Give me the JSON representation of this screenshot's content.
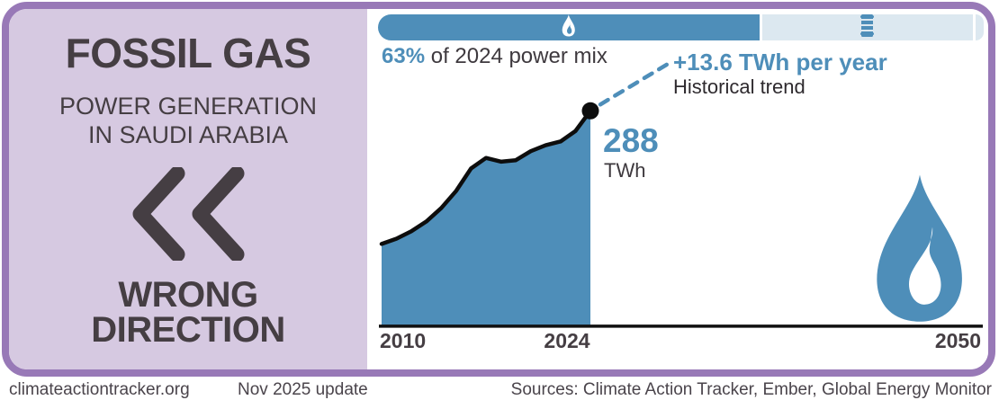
{
  "panel": {
    "title": "FOSSIL GAS",
    "subtitle_line1": "POWER GENERATION",
    "subtitle_line2": "IN SAUDI ARABIA",
    "rating_line1": "WRONG",
    "rating_line2": "DIRECTION"
  },
  "power_mix_bar": {
    "share_label": "63%",
    "share_label_suffix": " of 2024 power mix",
    "gas_share_pct": 63,
    "other_fossil_share_pct": 35.5,
    "remainder_share_pct": 1.5,
    "gas_icon": "flame-icon",
    "oil_icon": "oil-barrel-icon"
  },
  "annotations": {
    "trend_value": "+13.6 TWh per year",
    "trend_label": "Historical trend",
    "latest_value": "288",
    "latest_unit": "TWh"
  },
  "chart_data": {
    "type": "area",
    "title": "Fossil gas power generation in Saudi Arabia",
    "x": [
      2010,
      2011,
      2012,
      2013,
      2014,
      2015,
      2016,
      2017,
      2018,
      2019,
      2020,
      2021,
      2022,
      2023,
      2024
    ],
    "values": [
      110,
      117,
      127,
      140,
      158,
      181,
      211,
      225,
      220,
      222,
      234,
      242,
      247,
      261,
      288
    ],
    "unit": "TWh",
    "ylabel": "TWh",
    "xlabel": "",
    "x_axis_ticks": [
      "2010",
      "2024",
      "2050"
    ],
    "x_range": [
      2010,
      2050
    ],
    "ylim": [
      0,
      320
    ],
    "grid": false,
    "legend": false,
    "latest_point": {
      "year": 2024,
      "value": 288
    },
    "historical_trend_twh_per_year": 13.6
  },
  "footer": {
    "site": "climateactiontracker.org",
    "update": "Nov 2025 update",
    "sources": "Sources: Climate Action Tracker, Ember, Global Energy Monitor"
  },
  "colors": {
    "accent_blue": "#4e8eb9",
    "pale_blue": "#dce8f0",
    "border_purple": "#9879b7",
    "panel_lavender": "#d6c9e1",
    "dark_text": "#453e43",
    "line_black": "#0d0d0d"
  }
}
